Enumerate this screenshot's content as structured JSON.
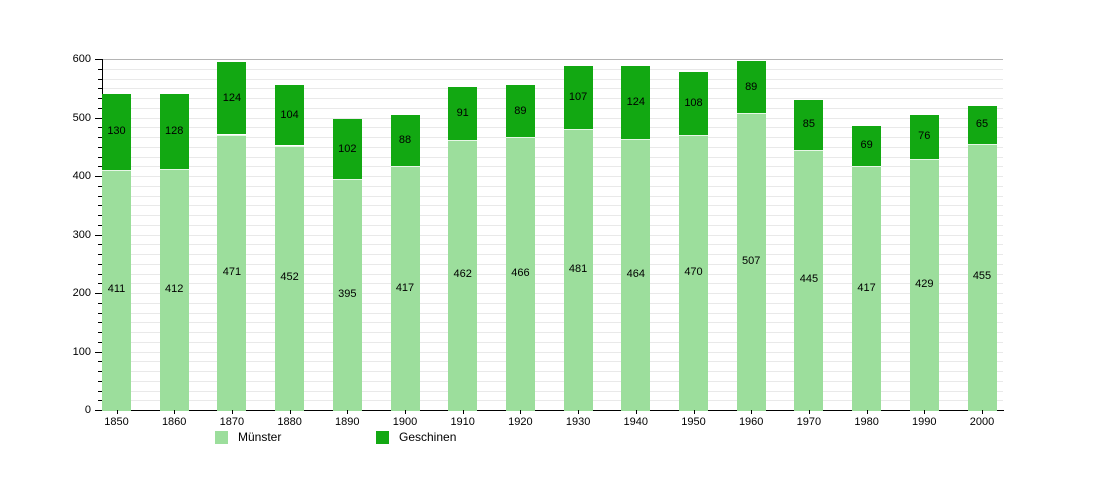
{
  "chart_data": {
    "type": "bar",
    "stacked": true,
    "title": "",
    "xlabel": "",
    "ylabel": "",
    "categories": [
      "1850",
      "1860",
      "1870",
      "1880",
      "1890",
      "1900",
      "1910",
      "1920",
      "1930",
      "1940",
      "1950",
      "1960",
      "1970",
      "1980",
      "1990",
      "2000"
    ],
    "series": [
      {
        "name": "Münster",
        "color": "#9cde9c",
        "values": [
          411,
          412,
          471,
          452,
          395,
          417,
          462,
          466,
          481,
          464,
          470,
          507,
          445,
          417,
          429,
          455
        ]
      },
      {
        "name": "Geschinen",
        "color": "#12a812",
        "values": [
          130,
          128,
          124,
          104,
          102,
          88,
          91,
          89,
          107,
          124,
          108,
          89,
          85,
          69,
          76,
          65
        ]
      }
    ],
    "ylim": [
      0,
      600
    ],
    "yticks": [
      "0",
      "100",
      "200",
      "300",
      "400",
      "500",
      "600"
    ],
    "ytick_interval": 100,
    "grid": "on",
    "legend_position": "bottom",
    "bar_value_labels": "inside-segment-center"
  },
  "colors": {
    "background": "#ffffff",
    "gridline": "#e9e9e9",
    "plot_top_line": "#b4b4b4",
    "axis": "#000000",
    "label_text": "#000000"
  },
  "legend": {
    "items": [
      {
        "label": "Münster",
        "color": "#9cde9c"
      },
      {
        "label": "Geschinen",
        "color": "#12a812"
      }
    ]
  }
}
